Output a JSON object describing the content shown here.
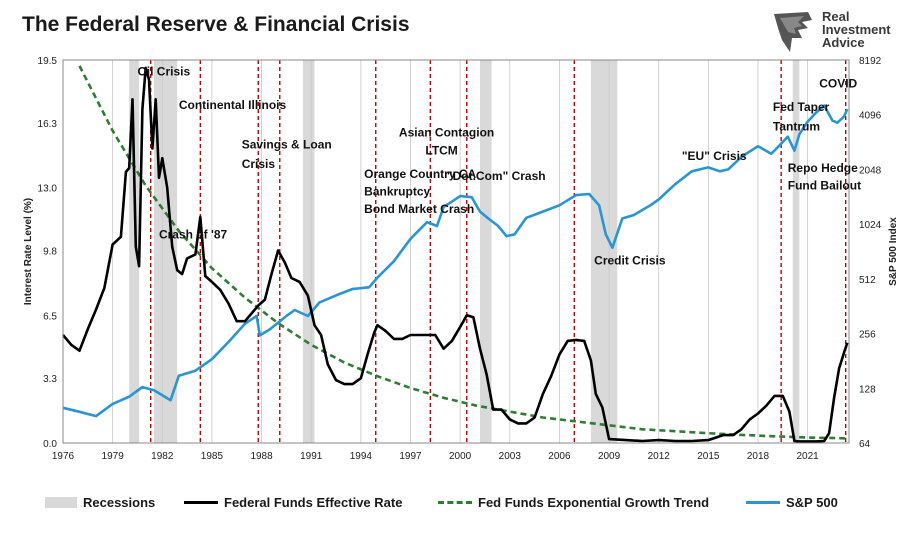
{
  "title": "The Federal Reserve & Financial Crisis",
  "brand": {
    "name_line1": "Real",
    "name_line2": "Investment",
    "name_line3": "Advice",
    "icon": "eagle-logo-icon"
  },
  "colors": {
    "fedfunds": "#000000",
    "trend": "#2e7d32",
    "sp500": "#2a95d3",
    "recession": "#d9d9d9",
    "crisis": "#c00000"
  },
  "legend": {
    "recessions": "Recessions",
    "fedfunds": "Federal Funds Effective Rate",
    "trend": "Fed Funds Exponential Growth Trend",
    "sp500": "S&P 500"
  },
  "chart_data": {
    "type": "line",
    "title": "The Federal Reserve & Financial Crisis",
    "ylabel": "Interest Rate Level (%)",
    "y2label": "S&P 500 Index",
    "xlim": [
      1976,
      2023.5
    ],
    "ylim": [
      0,
      19.5
    ],
    "y2lim_log2": [
      6,
      13
    ],
    "x_ticks": [
      "1976",
      "1979",
      "1982",
      "1985",
      "1988",
      "1991",
      "1994",
      "1997",
      "2000",
      "2003",
      "2006",
      "2009",
      "2012",
      "2015",
      "2018",
      "2021"
    ],
    "y_ticks": [
      "0.0",
      "3.3",
      "6.5",
      "9.8",
      "13.0",
      "16.3",
      "19.5"
    ],
    "y2_ticks": [
      "64",
      "128",
      "256",
      "512",
      "1024",
      "2048",
      "4096",
      "8192"
    ],
    "recessions": [
      [
        1980.0,
        1980.6
      ],
      [
        1981.5,
        1982.9
      ],
      [
        1990.5,
        1991.2
      ],
      [
        2001.2,
        2001.9
      ],
      [
        2007.9,
        2009.5
      ],
      [
        2020.1,
        2020.5
      ]
    ],
    "crisis_lines": [
      1981.3,
      1984.3,
      1987.8,
      1989.1,
      1994.9,
      1998.2,
      2000.4,
      2006.9,
      2019.4,
      2023.3
    ],
    "annotations": [
      {
        "text": "Oil Crisis",
        "x": 1980.5,
        "y": 18.7
      },
      {
        "text": "Continental Illinois",
        "x": 1983.0,
        "y": 17.0
      },
      {
        "text": "Savings & Loan",
        "x": 1986.8,
        "y": 15.0
      },
      {
        "text": "Crisis",
        "x": 1986.8,
        "y": 14.0
      },
      {
        "text": "Crash of '87",
        "x": 1981.8,
        "y": 10.4
      },
      {
        "text": "Orange Country CA",
        "x": 1994.2,
        "y": 13.5
      },
      {
        "text": "Bankruptcy",
        "x": 1994.2,
        "y": 12.6
      },
      {
        "text": "Bond Market Crash",
        "x": 1994.2,
        "y": 11.7
      },
      {
        "text": "Asian Contagion",
        "x": 1996.3,
        "y": 15.6
      },
      {
        "text": "LTCM",
        "x": 1997.9,
        "y": 14.7
      },
      {
        "text": "\"Dot.Com\" Crash",
        "x": 1999.2,
        "y": 13.4
      },
      {
        "text": "Credit Crisis",
        "x": 2008.1,
        "y": 9.1
      },
      {
        "text": "\"EU\" Crisis",
        "x": 2013.4,
        "y": 14.4
      },
      {
        "text": "Fed Taper",
        "x": 2018.9,
        "y": 16.9
      },
      {
        "text": "Tantrum",
        "x": 2018.9,
        "y": 15.9
      },
      {
        "text": "Repo Hedge",
        "x": 2019.8,
        "y": 13.8
      },
      {
        "text": "Fund Bailout",
        "x": 2019.8,
        "y": 12.9
      },
      {
        "text": "COVID",
        "x": 2021.7,
        "y": 18.1
      }
    ],
    "series": [
      {
        "name": "Federal Funds Effective Rate",
        "axis": "left",
        "x": [
          1976.0,
          1976.5,
          1977.0,
          1977.5,
          1978.0,
          1978.5,
          1979.0,
          1979.5,
          1979.8,
          1980.0,
          1980.2,
          1980.4,
          1980.6,
          1980.8,
          1981.0,
          1981.2,
          1981.4,
          1981.6,
          1981.8,
          1982.0,
          1982.3,
          1982.6,
          1982.9,
          1983.2,
          1983.5,
          1984.0,
          1984.3,
          1984.6,
          1985.0,
          1985.5,
          1986.0,
          1986.5,
          1987.0,
          1987.5,
          1987.8,
          1988.2,
          1988.6,
          1989.0,
          1989.4,
          1989.8,
          1990.3,
          1990.8,
          1991.2,
          1991.6,
          1992.0,
          1992.5,
          1993.0,
          1993.5,
          1994.0,
          1994.4,
          1994.8,
          1995.0,
          1995.5,
          1996.0,
          1996.5,
          1997.0,
          1997.5,
          1998.0,
          1998.5,
          1999.0,
          1999.5,
          2000.0,
          2000.4,
          2000.8,
          2001.2,
          2001.6,
          2002.0,
          2002.5,
          2003.0,
          2003.5,
          2004.0,
          2004.5,
          2005.0,
          2005.5,
          2006.0,
          2006.5,
          2007.0,
          2007.5,
          2007.9,
          2008.2,
          2008.6,
          2009.0,
          2010.0,
          2011.0,
          2012.0,
          2013.0,
          2014.0,
          2015.0,
          2015.9,
          2016.5,
          2017.0,
          2017.5,
          2018.0,
          2018.5,
          2019.0,
          2019.5,
          2019.9,
          2020.2,
          2020.5,
          2021.0,
          2021.5,
          2022.0,
          2022.3,
          2022.6,
          2022.9,
          2023.2,
          2023.4
        ],
        "y": [
          5.5,
          5.0,
          4.7,
          5.8,
          6.8,
          7.9,
          10.1,
          10.5,
          13.8,
          14.0,
          17.5,
          10.0,
          9.0,
          17.0,
          19.1,
          18.5,
          15.0,
          17.5,
          13.5,
          14.5,
          13.0,
          10.0,
          8.8,
          8.6,
          9.4,
          9.6,
          11.5,
          8.5,
          8.2,
          7.8,
          7.1,
          6.2,
          6.2,
          6.7,
          7.0,
          7.3,
          8.6,
          9.8,
          9.2,
          8.4,
          8.2,
          7.5,
          6.0,
          5.5,
          4.0,
          3.2,
          3.0,
          3.0,
          3.3,
          4.5,
          5.6,
          6.0,
          5.7,
          5.3,
          5.3,
          5.5,
          5.5,
          5.5,
          5.5,
          4.8,
          5.2,
          5.9,
          6.5,
          6.4,
          4.8,
          3.5,
          1.7,
          1.7,
          1.2,
          1.0,
          1.0,
          1.3,
          2.5,
          3.4,
          4.5,
          5.2,
          5.25,
          5.2,
          4.2,
          2.5,
          1.8,
          0.2,
          0.15,
          0.1,
          0.15,
          0.1,
          0.1,
          0.15,
          0.4,
          0.4,
          0.7,
          1.2,
          1.5,
          1.9,
          2.4,
          2.4,
          1.6,
          0.1,
          0.08,
          0.08,
          0.08,
          0.1,
          0.5,
          2.3,
          3.8,
          4.6,
          5.1
        ]
      },
      {
        "name": "Fed Funds Exponential Growth Trend",
        "axis": "left",
        "x": [
          1977,
          1979,
          1981,
          1983,
          1985,
          1987,
          1989,
          1991,
          1993,
          1995,
          1997,
          1999,
          2001,
          2003,
          2005,
          2007,
          2009,
          2011,
          2013,
          2015,
          2017,
          2019,
          2021,
          2023.3
        ],
        "y": [
          19.2,
          15.9,
          13.1,
          10.8,
          8.9,
          7.4,
          6.1,
          5.0,
          4.1,
          3.4,
          2.8,
          2.3,
          1.9,
          1.6,
          1.3,
          1.1,
          0.9,
          0.7,
          0.6,
          0.5,
          0.41,
          0.34,
          0.28,
          0.24
        ]
      },
      {
        "name": "S&P 500",
        "axis": "right",
        "x": [
          1976.0,
          1977.0,
          1978.0,
          1979.0,
          1980.0,
          1980.8,
          1981.5,
          1982.5,
          1983.0,
          1984.0,
          1985.0,
          1986.0,
          1987.0,
          1987.7,
          1987.9,
          1988.5,
          1989.5,
          1990.0,
          1990.8,
          1991.5,
          1992.5,
          1993.5,
          1994.5,
          1995.0,
          1996.0,
          1997.0,
          1998.0,
          1998.6,
          1999.0,
          1999.6,
          2000.0,
          2000.7,
          2001.2,
          2001.7,
          2002.3,
          2002.8,
          2003.3,
          2004.0,
          2005.0,
          2006.0,
          2007.0,
          2007.8,
          2008.4,
          2008.8,
          2009.2,
          2009.8,
          2010.5,
          2011.5,
          2012.0,
          2013.0,
          2014.0,
          2015.0,
          2015.7,
          2016.2,
          2017.0,
          2018.0,
          2018.8,
          2019.0,
          2019.8,
          2020.2,
          2020.5,
          2021.0,
          2021.5,
          2022.0,
          2022.5,
          2022.8,
          2023.2,
          2023.4
        ],
        "y": [
          100,
          95,
          90,
          105,
          115,
          130,
          125,
          110,
          150,
          160,
          185,
          230,
          290,
          320,
          250,
          270,
          320,
          345,
          320,
          380,
          415,
          450,
          460,
          520,
          640,
          850,
          1050,
          1000,
          1270,
          1380,
          1460,
          1440,
          1200,
          1100,
          1000,
          880,
          900,
          1110,
          1200,
          1300,
          1480,
          1500,
          1300,
          900,
          760,
          1100,
          1150,
          1300,
          1400,
          1700,
          2000,
          2100,
          2000,
          2050,
          2400,
          2750,
          2500,
          2600,
          3100,
          2600,
          3200,
          3750,
          4200,
          4600,
          3800,
          3700,
          4000,
          4400
        ]
      }
    ]
  }
}
